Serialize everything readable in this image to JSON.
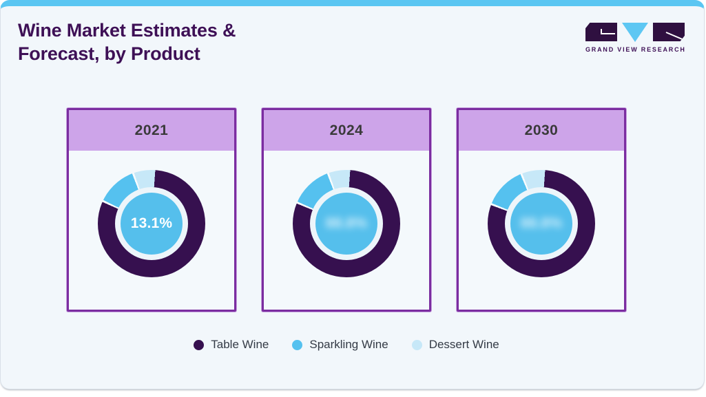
{
  "header": {
    "title_line1": "Wine Market Estimates &",
    "title_line2": "Forecast, by Product",
    "logo_text": "GRAND VIEW RESEARCH"
  },
  "colors": {
    "accent_top_bar": "#5bc6f2",
    "title_purple": "#3e1056",
    "card_border": "#7b2da0",
    "card_header_bg": "#cda4e9",
    "page_bg": "#f2f7fb",
    "table_wine": "#36104f",
    "sparkling_wine": "#55c1ef",
    "dessert_wine": "#c7e8f8",
    "center_circle": "#55bfec",
    "segment_gap": "#f7fbfd"
  },
  "chart_data": {
    "type": "pie",
    "variant": "donut-small-multiples",
    "title": "Wine Market Estimates & Forecast, by Product",
    "categories": [
      "Table Wine",
      "Sparkling Wine",
      "Dessert Wine"
    ],
    "legend": {
      "position": "bottom",
      "items": [
        {
          "label": "Table Wine",
          "color": "#36104f"
        },
        {
          "label": "Sparkling Wine",
          "color": "#55c1ef"
        },
        {
          "label": "Dessert Wine",
          "color": "#c7e8f8"
        }
      ]
    },
    "charts": [
      {
        "year": "2021",
        "center_label": "13.1%",
        "center_masked": false,
        "masked_placeholder": "",
        "values_pct": [
          80.5,
          12.5,
          7.0
        ]
      },
      {
        "year": "2024",
        "center_label": "",
        "center_masked": true,
        "masked_placeholder": "88.8%",
        "values_pct": [
          80.0,
          13.0,
          7.0
        ]
      },
      {
        "year": "2030",
        "center_label": "",
        "center_masked": true,
        "masked_placeholder": "88.8%",
        "values_pct": [
          79.5,
          13.0,
          7.5
        ]
      }
    ],
    "note": "Center values for 2024 and 2030 are blurred (redacted) in the source image"
  }
}
